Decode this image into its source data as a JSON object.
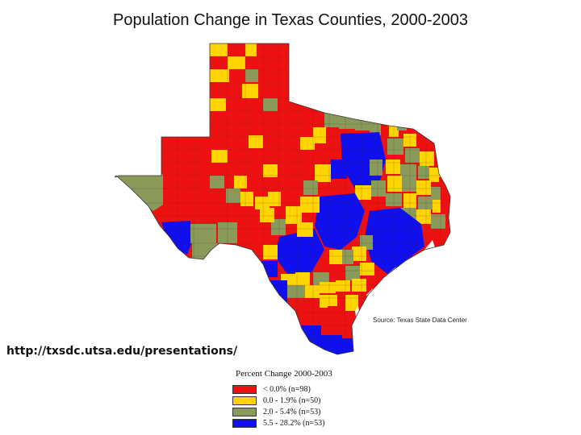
{
  "title": "Population Change in Texas Counties, 2000-2003",
  "source": "Source: Texas State Data Center",
  "url": "http://txsdc.utsa.edu/presentations/",
  "legend": {
    "title": "Percent Change 2000-2003",
    "items": [
      {
        "label": "< 0.0% (n=98)",
        "color": "#ee1111"
      },
      {
        "label": "0.0 -  1.9% (n=50)",
        "color": "#ffd400"
      },
      {
        "label": "2.0 -  5.4% (n=53)",
        "color": "#8a9a5b"
      },
      {
        "label": "5.5 - 28.2% (n=53)",
        "color": "#1010ee"
      }
    ]
  },
  "colors": {
    "decline": "#ee1111",
    "low": "#ffd400",
    "mid": "#8a9a5b",
    "high": "#1010ee",
    "water": "#ffffff"
  }
}
